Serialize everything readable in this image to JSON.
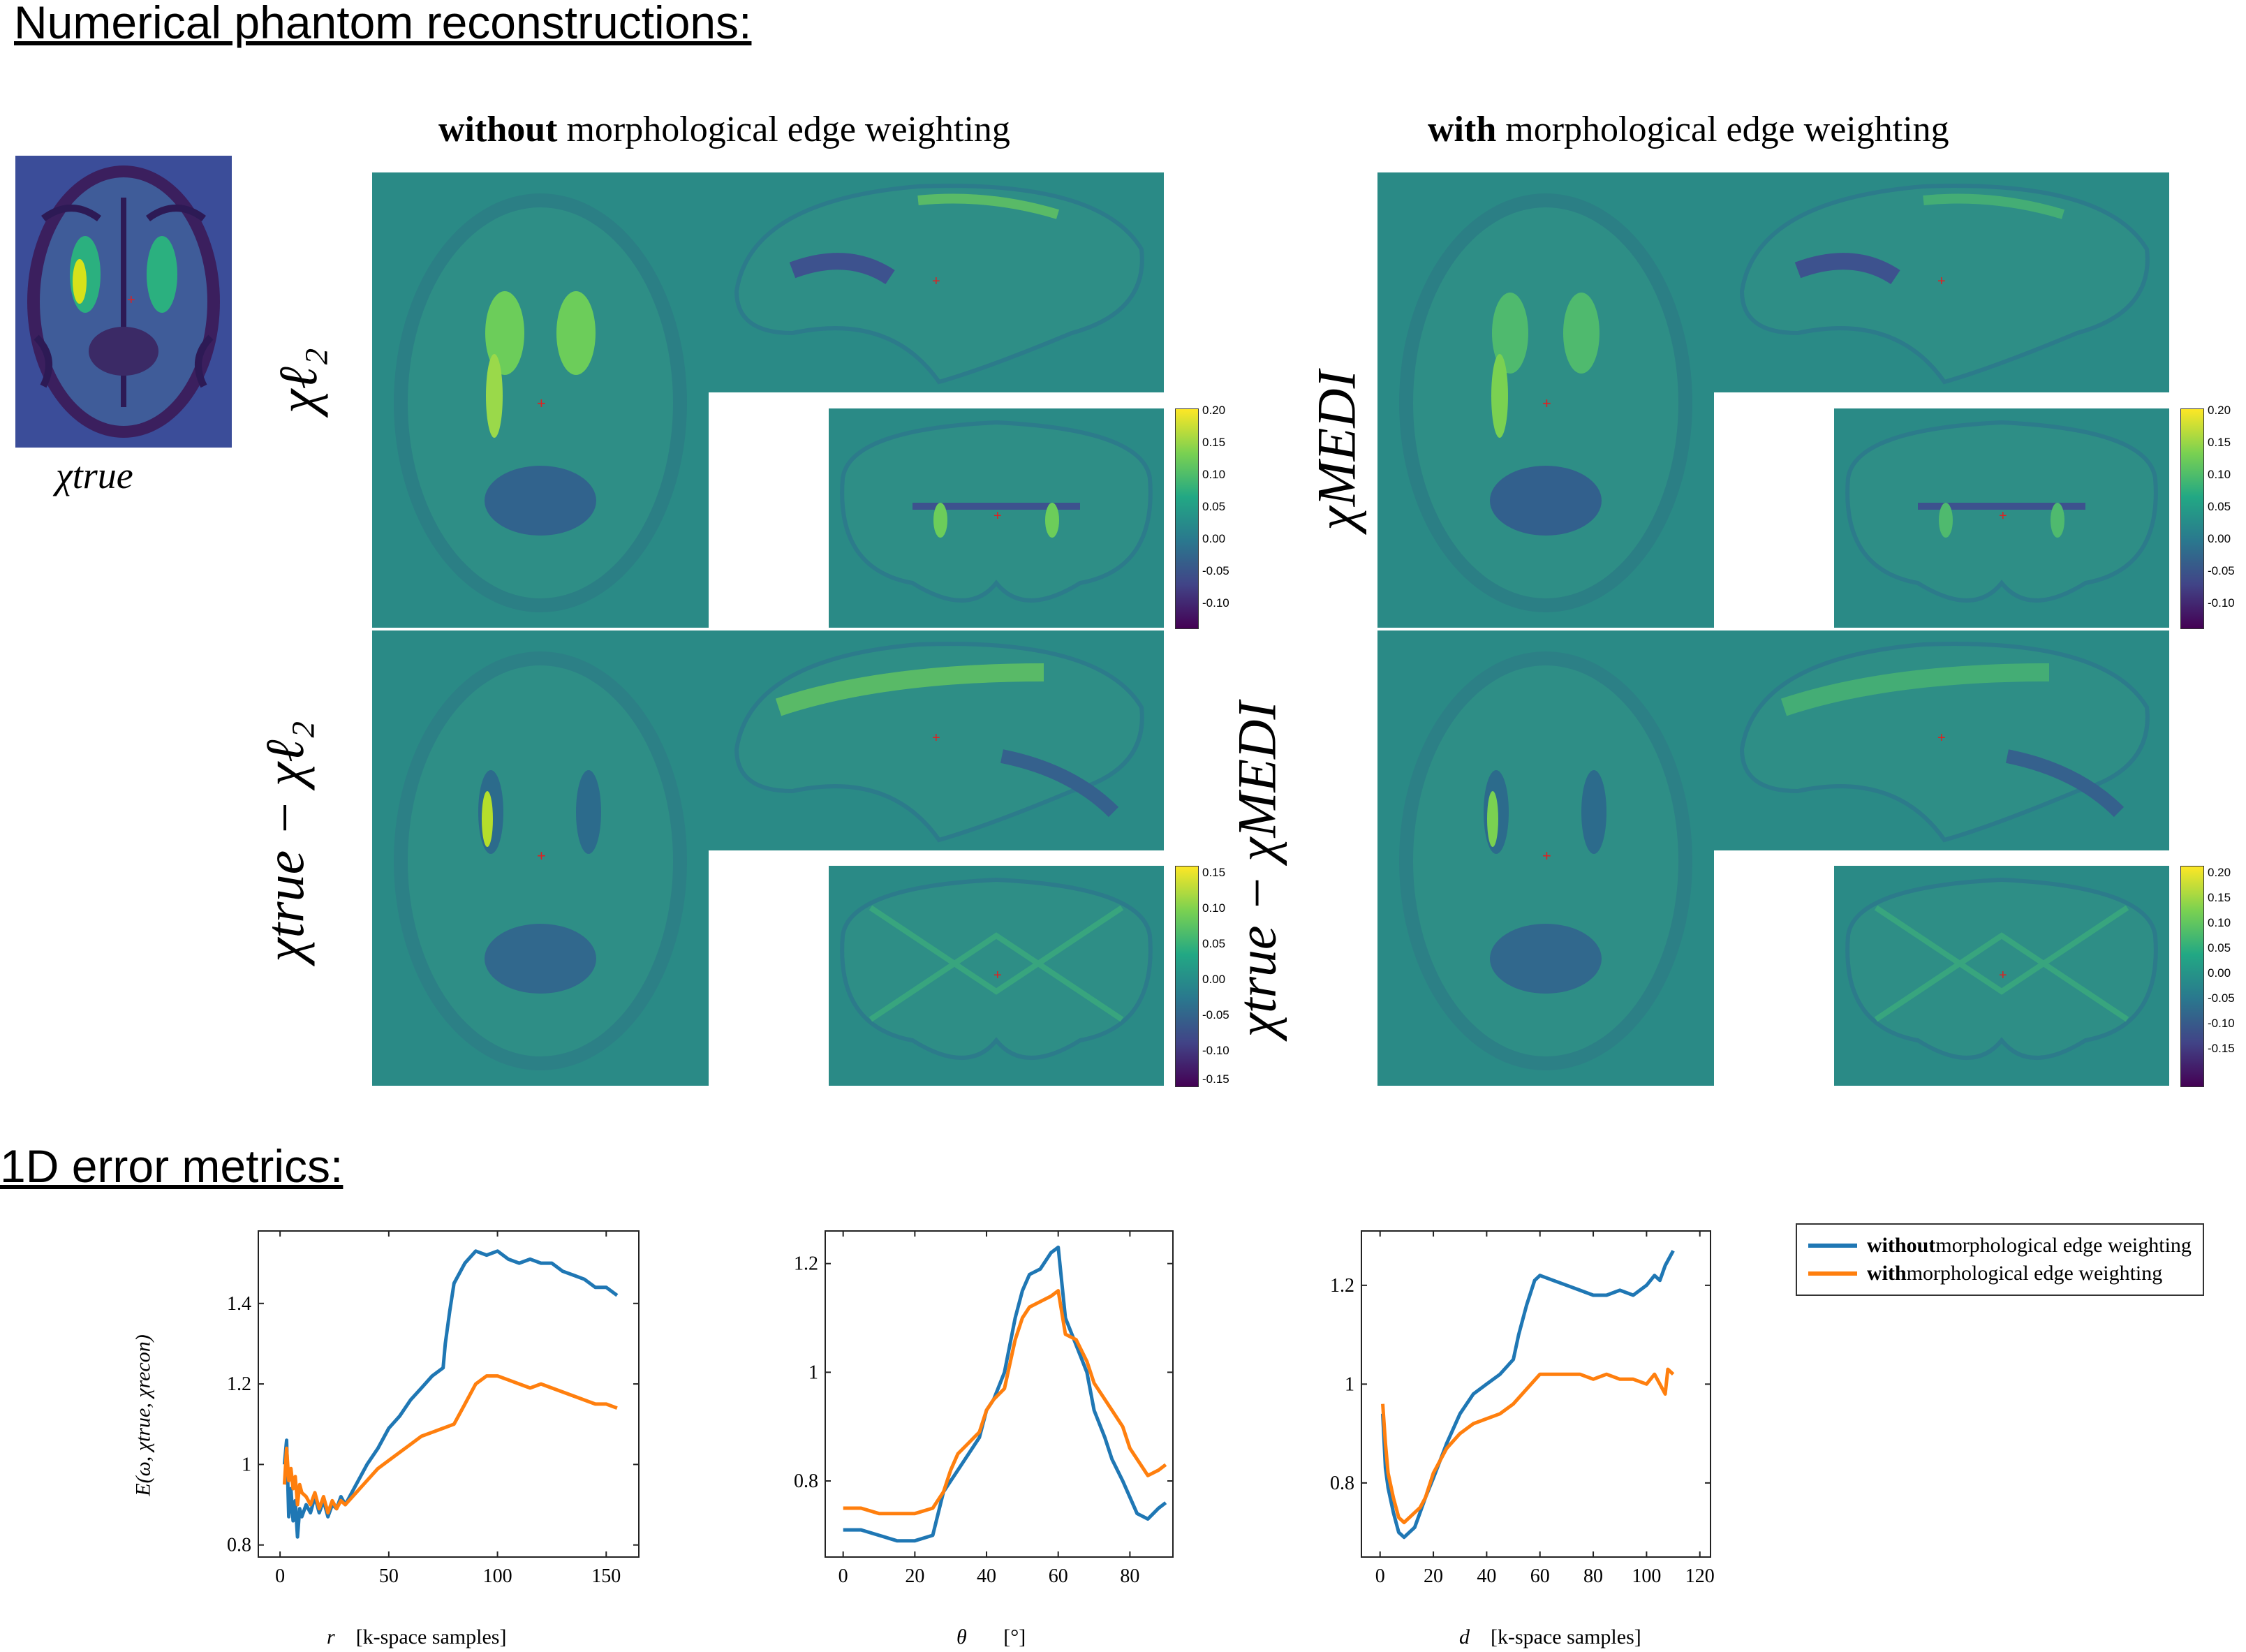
{
  "section1": {
    "title": "Numerical phantom reconstructions:"
  },
  "section2": {
    "title": "1D error metrics:"
  },
  "headers": {
    "without_bold": "without",
    "with_bold": "with",
    "rest": " morphological edge weighting"
  },
  "true_label": "χtrue",
  "row_labels": {
    "l2": "χℓ₂",
    "diff_l2": "χtrue − χℓ₂",
    "medi": "χMEDI",
    "diff_medi": "χtrue − χMEDI"
  },
  "colorbars": {
    "recon_ticks": [
      "0.20",
      "0.15",
      "0.10",
      "0.05",
      "0.00",
      "-0.05",
      "-0.10"
    ],
    "diff_left_ticks": [
      "0.15",
      "0.10",
      "0.05",
      "0.00",
      "-0.05",
      "-0.10",
      "-0.15"
    ],
    "diff_right_ticks": [
      "0.20",
      "0.15",
      "0.10",
      "0.05",
      "0.00",
      "-0.05",
      "-0.10",
      "-0.15"
    ]
  },
  "colors": {
    "blue": "#1f77b4",
    "orange": "#ff7f0e",
    "panel_bg": "#2a8a86"
  },
  "legend": {
    "without_bold": "without",
    "with_bold": "with",
    "rest": " morphological edge weighting"
  },
  "chart_data": [
    {
      "type": "line",
      "xlabel_var": "r",
      "xlabel_unit": "[k-space samples]",
      "ylabel": "E(ω, χtrue, χrecon)",
      "xlim": [
        -10,
        165
      ],
      "ylim": [
        0.77,
        1.58
      ],
      "xticks": [
        0,
        50,
        100,
        150
      ],
      "yticks": [
        0.8,
        1,
        1.2,
        1.4
      ],
      "series": [
        {
          "name": "without morphological edge weighting",
          "x": [
            2,
            3,
            4,
            5,
            6,
            7,
            8,
            9,
            10,
            12,
            14,
            16,
            18,
            20,
            22,
            24,
            26,
            28,
            30,
            35,
            40,
            45,
            50,
            55,
            60,
            65,
            70,
            75,
            76,
            78,
            80,
            85,
            90,
            95,
            100,
            105,
            110,
            115,
            120,
            125,
            130,
            135,
            140,
            145,
            150,
            155
          ],
          "y": [
            1.0,
            1.06,
            0.87,
            0.94,
            0.86,
            0.91,
            0.82,
            0.89,
            0.87,
            0.9,
            0.88,
            0.92,
            0.88,
            0.91,
            0.87,
            0.9,
            0.89,
            0.92,
            0.9,
            0.95,
            1.0,
            1.04,
            1.09,
            1.12,
            1.16,
            1.19,
            1.22,
            1.24,
            1.3,
            1.38,
            1.45,
            1.5,
            1.53,
            1.52,
            1.53,
            1.51,
            1.5,
            1.51,
            1.5,
            1.5,
            1.48,
            1.47,
            1.46,
            1.44,
            1.44,
            1.42
          ]
        },
        {
          "name": "with morphological edge weighting",
          "x": [
            2,
            3,
            4,
            5,
            6,
            7,
            8,
            9,
            10,
            12,
            14,
            16,
            18,
            20,
            22,
            24,
            26,
            28,
            30,
            35,
            40,
            45,
            50,
            55,
            60,
            65,
            70,
            75,
            80,
            85,
            90,
            95,
            100,
            105,
            110,
            115,
            120,
            125,
            130,
            135,
            140,
            145,
            150,
            155
          ],
          "y": [
            0.95,
            1.04,
            0.96,
            0.99,
            0.94,
            0.97,
            0.9,
            0.95,
            0.93,
            0.92,
            0.9,
            0.93,
            0.89,
            0.92,
            0.88,
            0.91,
            0.89,
            0.91,
            0.9,
            0.93,
            0.96,
            0.99,
            1.01,
            1.03,
            1.05,
            1.07,
            1.08,
            1.09,
            1.1,
            1.15,
            1.2,
            1.22,
            1.22,
            1.21,
            1.2,
            1.19,
            1.2,
            1.19,
            1.18,
            1.17,
            1.16,
            1.15,
            1.15,
            1.14
          ]
        }
      ]
    },
    {
      "type": "line",
      "xlabel_var": "θ",
      "xlabel_unit": "[°]",
      "ylabel": "",
      "xlim": [
        -5,
        92
      ],
      "ylim": [
        0.66,
        1.26
      ],
      "xticks": [
        0,
        20,
        40,
        60,
        80
      ],
      "yticks": [
        0.8,
        1,
        1.2
      ],
      "series": [
        {
          "name": "without morphological edge weighting",
          "x": [
            0,
            5,
            10,
            15,
            20,
            25,
            28,
            30,
            32,
            35,
            38,
            40,
            42,
            45,
            48,
            50,
            52,
            55,
            58,
            60,
            62,
            65,
            68,
            70,
            73,
            75,
            78,
            80,
            82,
            85,
            88,
            90
          ],
          "y": [
            0.71,
            0.71,
            0.7,
            0.69,
            0.69,
            0.7,
            0.78,
            0.8,
            0.82,
            0.85,
            0.88,
            0.93,
            0.95,
            1.0,
            1.1,
            1.15,
            1.18,
            1.19,
            1.22,
            1.23,
            1.1,
            1.05,
            1.0,
            0.93,
            0.88,
            0.84,
            0.8,
            0.77,
            0.74,
            0.73,
            0.75,
            0.76
          ]
        },
        {
          "name": "with morphological edge weighting",
          "x": [
            0,
            5,
            10,
            15,
            20,
            25,
            28,
            30,
            32,
            35,
            38,
            40,
            42,
            45,
            48,
            50,
            52,
            55,
            58,
            60,
            62,
            65,
            68,
            70,
            73,
            75,
            78,
            80,
            82,
            85,
            88,
            90
          ],
          "y": [
            0.75,
            0.75,
            0.74,
            0.74,
            0.74,
            0.75,
            0.78,
            0.82,
            0.85,
            0.87,
            0.89,
            0.93,
            0.95,
            0.97,
            1.06,
            1.1,
            1.12,
            1.13,
            1.14,
            1.15,
            1.07,
            1.06,
            1.02,
            0.98,
            0.95,
            0.93,
            0.9,
            0.86,
            0.84,
            0.81,
            0.82,
            0.83
          ]
        }
      ]
    },
    {
      "type": "line",
      "xlabel_var": "d",
      "xlabel_unit": "[k-space samples]",
      "ylabel": "",
      "xlim": [
        -7,
        124
      ],
      "ylim": [
        0.65,
        1.31
      ],
      "xticks": [
        0,
        20,
        40,
        60,
        80,
        100,
        120
      ],
      "yticks": [
        0.8,
        1,
        1.2
      ],
      "series": [
        {
          "name": "without morphological edge weighting",
          "x": [
            1,
            2,
            3,
            5,
            7,
            9,
            11,
            13,
            15,
            17,
            20,
            25,
            30,
            35,
            40,
            45,
            50,
            52,
            55,
            58,
            60,
            65,
            70,
            75,
            80,
            85,
            90,
            95,
            100,
            103,
            105,
            107,
            110
          ],
          "y": [
            0.94,
            0.83,
            0.79,
            0.74,
            0.7,
            0.69,
            0.7,
            0.71,
            0.74,
            0.77,
            0.81,
            0.88,
            0.94,
            0.98,
            1.0,
            1.02,
            1.05,
            1.1,
            1.16,
            1.21,
            1.22,
            1.21,
            1.2,
            1.19,
            1.18,
            1.18,
            1.19,
            1.18,
            1.2,
            1.22,
            1.21,
            1.24,
            1.27
          ]
        },
        {
          "name": "with morphological edge weighting",
          "x": [
            1,
            2,
            3,
            5,
            7,
            9,
            11,
            13,
            15,
            17,
            20,
            25,
            30,
            35,
            40,
            45,
            50,
            55,
            60,
            65,
            70,
            75,
            80,
            85,
            90,
            95,
            100,
            103,
            105,
            107,
            108,
            110
          ],
          "y": [
            0.96,
            0.88,
            0.82,
            0.77,
            0.73,
            0.72,
            0.73,
            0.74,
            0.75,
            0.77,
            0.82,
            0.87,
            0.9,
            0.92,
            0.93,
            0.94,
            0.96,
            0.99,
            1.02,
            1.02,
            1.02,
            1.02,
            1.01,
            1.02,
            1.01,
            1.01,
            1.0,
            1.02,
            1.0,
            0.98,
            1.03,
            1.02
          ]
        }
      ]
    }
  ]
}
